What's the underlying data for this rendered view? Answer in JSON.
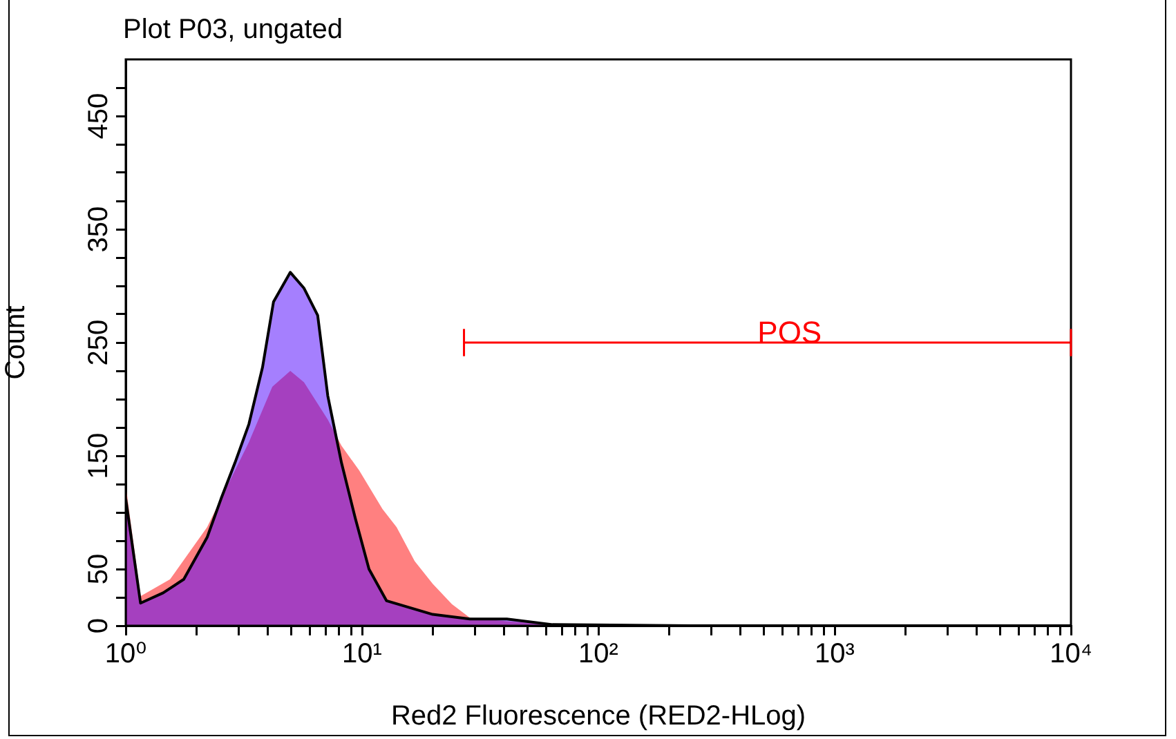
{
  "chart_data": {
    "type": "area",
    "title": "Plot P03, ungated",
    "xlabel": "Red2 Fluorescence (RED2-HLog)",
    "ylabel": "Count",
    "log": "x",
    "grid": false,
    "legend": false,
    "xlim": [
      1,
      10000
    ],
    "xticks": [
      {
        "value": 1,
        "label": "10⁰"
      },
      {
        "value": 2,
        "label": null
      },
      {
        "value": 3,
        "label": null
      },
      {
        "value": 4,
        "label": null
      },
      {
        "value": 5,
        "label": null
      },
      {
        "value": 6,
        "label": null
      },
      {
        "value": 7,
        "label": null
      },
      {
        "value": 8,
        "label": null
      },
      {
        "value": 9,
        "label": null
      },
      {
        "value": 10,
        "label": "10¹"
      },
      {
        "value": 20,
        "label": null
      },
      {
        "value": 30,
        "label": null
      },
      {
        "value": 40,
        "label": null
      },
      {
        "value": 50,
        "label": null
      },
      {
        "value": 60,
        "label": null
      },
      {
        "value": 70,
        "label": null
      },
      {
        "value": 80,
        "label": null
      },
      {
        "value": 90,
        "label": null
      },
      {
        "value": 100,
        "label": "10²"
      },
      {
        "value": 200,
        "label": null
      },
      {
        "value": 300,
        "label": null
      },
      {
        "value": 400,
        "label": null
      },
      {
        "value": 500,
        "label": null
      },
      {
        "value": 600,
        "label": null
      },
      {
        "value": 700,
        "label": null
      },
      {
        "value": 800,
        "label": null
      },
      {
        "value": 900,
        "label": null
      },
      {
        "value": 1000,
        "label": "10³"
      },
      {
        "value": 2000,
        "label": null
      },
      {
        "value": 3000,
        "label": null
      },
      {
        "value": 4000,
        "label": null
      },
      {
        "value": 5000,
        "label": null
      },
      {
        "value": 6000,
        "label": null
      },
      {
        "value": 7000,
        "label": null
      },
      {
        "value": 8000,
        "label": null
      },
      {
        "value": 9000,
        "label": null
      },
      {
        "value": 10000,
        "label": "10⁴"
      }
    ],
    "ylim": [
      0,
      500
    ],
    "yticks": [
      0,
      {
        "value": 25,
        "label": null
      },
      50,
      {
        "value": 75,
        "label": null
      },
      {
        "value": 100,
        "label": null
      },
      {
        "value": 125,
        "label": null
      },
      150,
      {
        "value": 175,
        "label": null
      },
      {
        "value": 200,
        "label": null
      },
      {
        "value": 225,
        "label": null
      },
      250,
      {
        "value": 275,
        "label": null
      },
      {
        "value": 300,
        "label": null
      },
      {
        "value": 325,
        "label": null
      },
      350,
      {
        "value": 375,
        "label": null
      },
      {
        "value": 400,
        "label": null
      },
      {
        "value": 425,
        "label": null
      },
      450,
      {
        "value": 475,
        "label": null
      }
    ],
    "series": [
      {
        "color": "#ff8080",
        "x": [
          1,
          1.155,
          1.54,
          2.21,
          2.53,
          3.32,
          4.17,
          4.97,
          5.68,
          7.16,
          8.18,
          9.73,
          12.2,
          14,
          16.7,
          19.9,
          24,
          28.6,
          41,
          64,
          246,
          10000
        ],
        "values": [
          124,
          26,
          41,
          87,
          112,
          162,
          211,
          225,
          215,
          182,
          159,
          137,
          103,
          87,
          57,
          37,
          19,
          7,
          4,
          1,
          0,
          0
        ]
      },
      {
        "color": "#a57cfe",
        "x": [
          1,
          1.155,
          1.44,
          1.76,
          2.21,
          2.53,
          2.9,
          3.32,
          3.79,
          4.22,
          4.97,
          5.68,
          6.49,
          7.16,
          8.18,
          9.36,
          10.7,
          12.7,
          19.9,
          28.6,
          41,
          64,
          246,
          10000
        ],
        "values": [
          112,
          20,
          29,
          41,
          78,
          112,
          144,
          178,
          228,
          286,
          312,
          298,
          274,
          203,
          144,
          95,
          50,
          22,
          10,
          6,
          6,
          1,
          0,
          0
        ]
      },
      {
        "type": "line",
        "name": "POS",
        "color": "#ff0000",
        "x": [
          27,
          10000
        ],
        "values": [
          250,
          250
        ],
        "errors": [
          12,
          12
        ]
      }
    ],
    "marker": "none"
  }
}
